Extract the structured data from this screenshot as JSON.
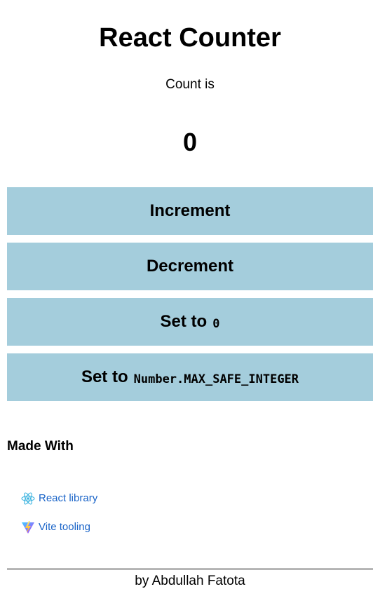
{
  "header": {
    "title": "React Counter"
  },
  "counter": {
    "label": "Count is",
    "value": "0"
  },
  "buttons": {
    "increment": "Increment",
    "decrement": "Decrement",
    "reset_prefix": "Set to",
    "reset_code": "0",
    "max_prefix": "Set to",
    "max_code": "Number.MAX_SAFE_INTEGER",
    "color": "#a4cddc"
  },
  "made_with": {
    "heading": "Made With",
    "links": [
      {
        "label": "React library",
        "icon": "react-icon"
      },
      {
        "label": "Vite tooling",
        "icon": "vite-icon"
      }
    ],
    "link_color": "#1a64c8"
  },
  "footer": {
    "text": "by Abdullah Fatota"
  }
}
